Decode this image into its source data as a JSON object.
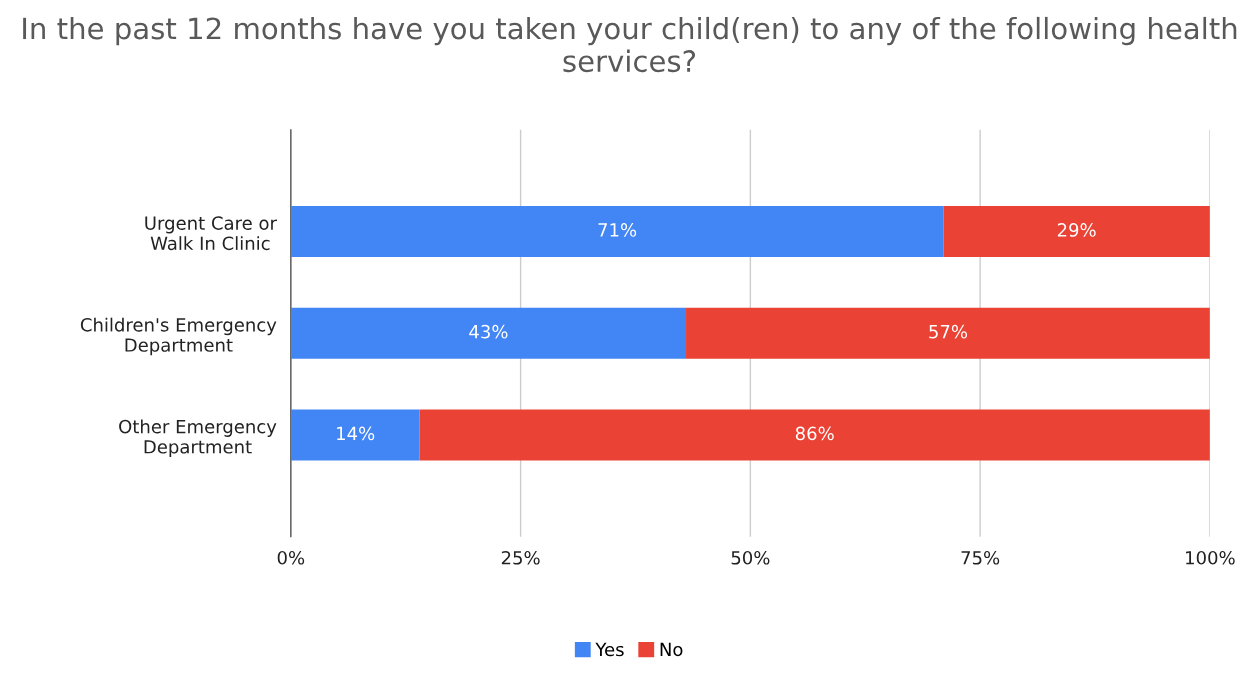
{
  "chart_data": {
    "type": "bar",
    "orientation": "horizontal",
    "stacked": true,
    "title": "In the past 12 months have you taken your child(ren) to any of the following health services?",
    "categories": [
      "Urgent Care or\nWalk In Clinic",
      "Children's Emergency\nDepartment",
      "Other Emergency\nDepartment"
    ],
    "series": [
      {
        "name": "Yes",
        "color": "#4285f4",
        "values": [
          71,
          43,
          14
        ],
        "value_labels": [
          "71%",
          "43%",
          "14%"
        ]
      },
      {
        "name": "No",
        "color": "#ea4335",
        "values": [
          29,
          57,
          86
        ],
        "value_labels": [
          "29%",
          "57%",
          "86%"
        ]
      }
    ],
    "xlim": [
      0,
      100
    ],
    "xticks": [
      {
        "value": 0,
        "label": "0%"
      },
      {
        "value": 25,
        "label": "25%"
      },
      {
        "value": 50,
        "label": "50%"
      },
      {
        "value": 75,
        "label": "75%"
      },
      {
        "value": 100,
        "label": "100%"
      }
    ],
    "grid": "x",
    "legend": "bottom"
  }
}
